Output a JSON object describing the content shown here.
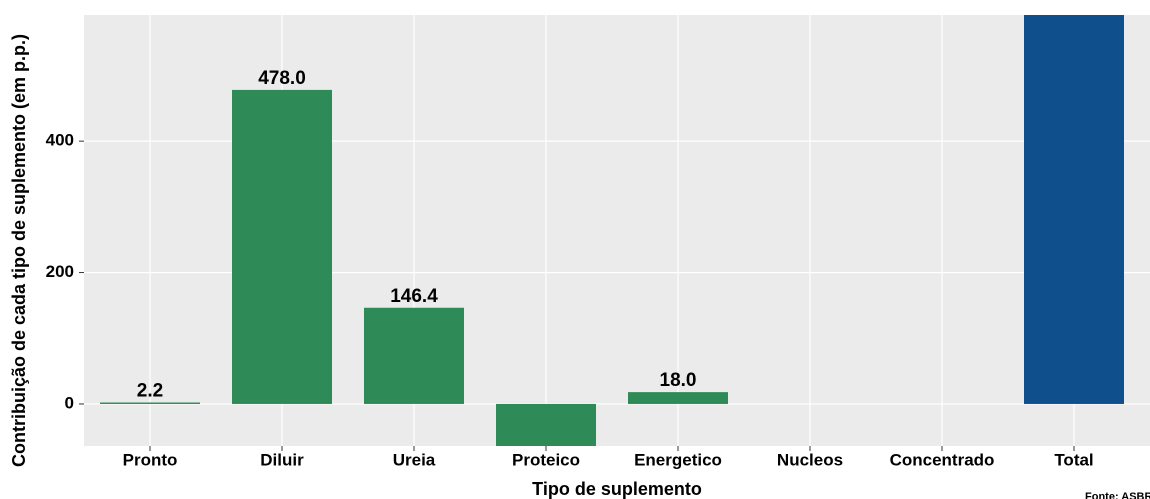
{
  "chart_data": {
    "type": "bar",
    "x_label": "Tipo de suplemento",
    "y_label": "Contribuição de cada tipo de suplemento (em p.p.)",
    "caption": "Fonte: ASBRAM",
    "categories": [
      "Pronto",
      "Diluir",
      "Ureia",
      "Proteico",
      "Energetico",
      "Nucleos",
      "Concentrado",
      "Total"
    ],
    "values": [
      2.2,
      478.0,
      146.4,
      -70,
      18.0,
      0,
      0,
      600
    ],
    "value_labels": [
      "2.2",
      "478.0",
      "146.4",
      null,
      "18.0",
      null,
      null,
      null
    ],
    "colors": [
      "#2e8b57",
      "#2e8b57",
      "#2e8b57",
      "#2e8b57",
      "#2e8b57",
      "#2e8b57",
      "#2e8b57",
      "#0f4f8c"
    ],
    "ylim": [
      -64,
      592
    ],
    "yticks": [
      0,
      200,
      400
    ],
    "grid": true
  }
}
